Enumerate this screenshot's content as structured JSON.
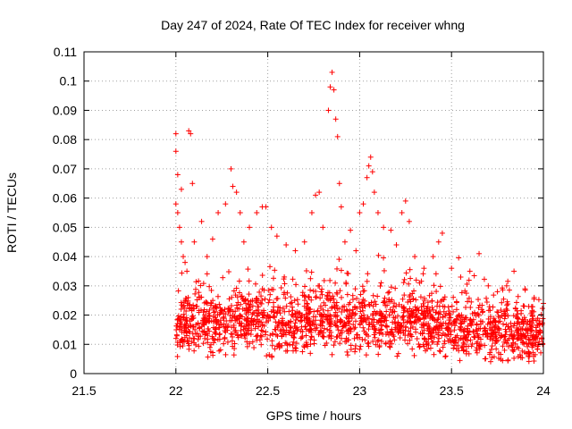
{
  "chart_data": {
    "type": "scatter",
    "title": "Day 247 of 2024, Rate Of TEC Index for receiver whng",
    "xlabel": "GPS time / hours",
    "ylabel": "ROTI / TECUs",
    "xlim": [
      21.5,
      24
    ],
    "ylim": [
      0,
      0.11
    ],
    "xticks": [
      "21.5",
      "22",
      "22.5",
      "23",
      "23.5",
      "24"
    ],
    "yticks": [
      "0",
      "0.01",
      "0.02",
      "0.03",
      "0.04",
      "0.05",
      "0.06",
      "0.07",
      "0.08",
      "0.09",
      "0.1",
      "0.11"
    ],
    "grid": true,
    "marker": "+",
    "color": "#ff0000",
    "series": [
      {
        "values_note_free": true,
        "points": [
          [
            22.0,
            0.082
          ],
          [
            22.0,
            0.076
          ],
          [
            22.01,
            0.068
          ],
          [
            22.03,
            0.063
          ],
          [
            22.07,
            0.083
          ],
          [
            22.08,
            0.082
          ],
          [
            22.09,
            0.065
          ],
          [
            22.0,
            0.058
          ],
          [
            22.01,
            0.055
          ],
          [
            22.02,
            0.05
          ],
          [
            22.03,
            0.045
          ],
          [
            22.04,
            0.04
          ],
          [
            22.05,
            0.038
          ],
          [
            22.06,
            0.035
          ],
          [
            22.1,
            0.045
          ],
          [
            22.14,
            0.052
          ],
          [
            22.17,
            0.04
          ],
          [
            22.2,
            0.046
          ],
          [
            22.23,
            0.055
          ],
          [
            22.27,
            0.058
          ],
          [
            22.3,
            0.07
          ],
          [
            22.31,
            0.064
          ],
          [
            22.33,
            0.062
          ],
          [
            22.35,
            0.055
          ],
          [
            22.37,
            0.045
          ],
          [
            22.4,
            0.05
          ],
          [
            22.44,
            0.055
          ],
          [
            22.47,
            0.057
          ],
          [
            22.49,
            0.057
          ],
          [
            22.52,
            0.05
          ],
          [
            22.55,
            0.047
          ],
          [
            22.6,
            0.044
          ],
          [
            22.65,
            0.042
          ],
          [
            22.7,
            0.045
          ],
          [
            22.74,
            0.055
          ],
          [
            22.76,
            0.061
          ],
          [
            22.78,
            0.062
          ],
          [
            22.8,
            0.05
          ],
          [
            22.83,
            0.09
          ],
          [
            22.84,
            0.098
          ],
          [
            22.85,
            0.103
          ],
          [
            22.86,
            0.097
          ],
          [
            22.87,
            0.087
          ],
          [
            22.88,
            0.081
          ],
          [
            22.89,
            0.065
          ],
          [
            22.9,
            0.057
          ],
          [
            22.92,
            0.045
          ],
          [
            22.95,
            0.049
          ],
          [
            22.98,
            0.042
          ],
          [
            23.0,
            0.055
          ],
          [
            23.02,
            0.058
          ],
          [
            23.04,
            0.067
          ],
          [
            23.05,
            0.071
          ],
          [
            23.06,
            0.074
          ],
          [
            23.07,
            0.069
          ],
          [
            23.08,
            0.062
          ],
          [
            23.1,
            0.055
          ],
          [
            23.13,
            0.05
          ],
          [
            23.17,
            0.049
          ],
          [
            23.2,
            0.044
          ],
          [
            23.23,
            0.055
          ],
          [
            23.25,
            0.059
          ],
          [
            23.27,
            0.052
          ],
          [
            23.3,
            0.04
          ],
          [
            23.35,
            0.036
          ],
          [
            23.4,
            0.04
          ],
          [
            23.43,
            0.045
          ],
          [
            23.45,
            0.048
          ],
          [
            23.5,
            0.036
          ],
          [
            23.55,
            0.033
          ],
          [
            23.6,
            0.035
          ],
          [
            23.65,
            0.041
          ],
          [
            23.7,
            0.03
          ],
          [
            23.75,
            0.028
          ],
          [
            23.8,
            0.03
          ],
          [
            23.84,
            0.035
          ],
          [
            23.9,
            0.029
          ],
          [
            23.95,
            0.026
          ],
          [
            24.0,
            0.024
          ]
        ]
      }
    ],
    "dense_band": {
      "x_range": [
        22.0,
        24.0
      ],
      "y_center_profile": [
        [
          22.0,
          0.016
        ],
        [
          22.2,
          0.017
        ],
        [
          22.4,
          0.018
        ],
        [
          22.6,
          0.016
        ],
        [
          22.8,
          0.019
        ],
        [
          23.0,
          0.017
        ],
        [
          23.2,
          0.018
        ],
        [
          23.4,
          0.017
        ],
        [
          23.6,
          0.016
        ],
        [
          23.8,
          0.014
        ],
        [
          24.0,
          0.013
        ]
      ]
    }
  }
}
